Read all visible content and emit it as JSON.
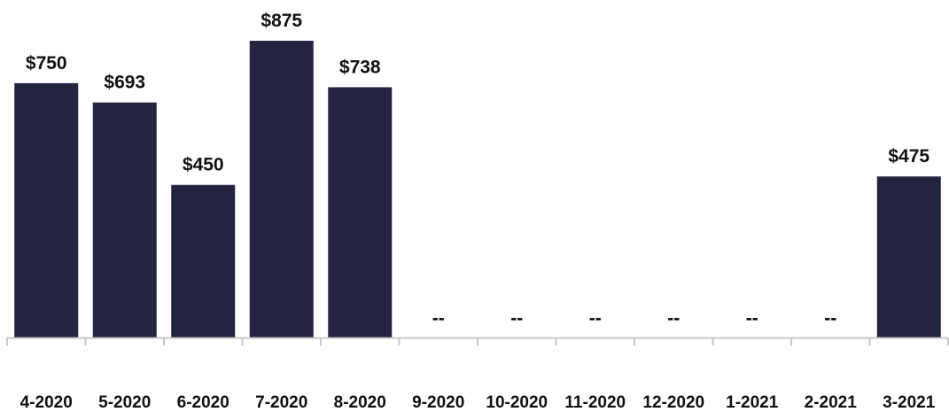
{
  "chart_data": {
    "type": "bar",
    "categories": [
      "4-2020",
      "5-2020",
      "6-2020",
      "7-2020",
      "8-2020",
      "9-2020",
      "10-2020",
      "11-2020",
      "12-2020",
      "1-2021",
      "2-2021",
      "3-2021"
    ],
    "values": [
      750,
      693,
      450,
      875,
      738,
      null,
      null,
      null,
      null,
      null,
      null,
      475
    ],
    "data_labels": [
      "$750",
      "$693",
      "$450",
      "$875",
      "$738",
      "--",
      "--",
      "--",
      "--",
      "--",
      "--",
      "$475"
    ],
    "title": "",
    "xlabel": "",
    "ylabel": "",
    "ylim": [
      0,
      875
    ],
    "grid": false,
    "legend": "none",
    "bar_color": "#232540",
    "axis_color": "#c8c8c8"
  }
}
